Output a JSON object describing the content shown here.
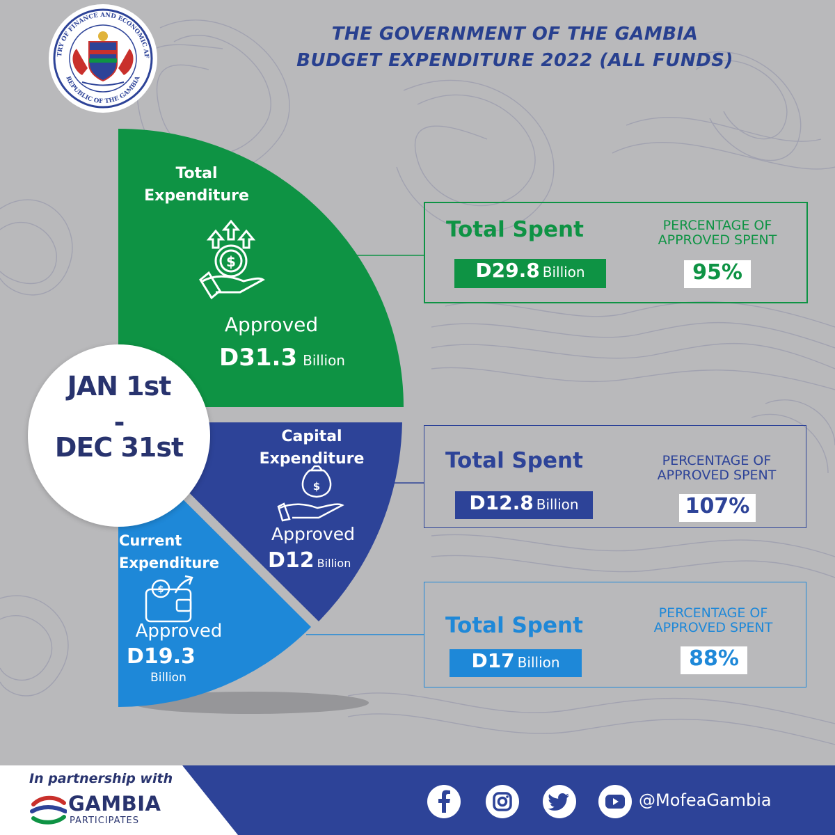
{
  "header": {
    "title_line1": "THE GOVERNMENT OF THE GAMBIA",
    "title_line2": "BUDGET EXPENDITURE 2022 (ALL FUNDS)"
  },
  "logo": {
    "ring_text": "MINISTRY OF FINANCE AND ECONOMIC AFFAIRS",
    "bottom_text": "REPUBLIC OF THE GAMBIA"
  },
  "period": {
    "line1": "JAN 1st",
    "line2": "-",
    "line3": "DEC 31st"
  },
  "sectors": {
    "total": {
      "label1": "Total",
      "label2": "Expenditure",
      "approved_label": "Approved",
      "approved_value": "D31.3",
      "approved_unit": "Billion",
      "color": "#0e9344"
    },
    "capital": {
      "label1": "Capital",
      "label2": "Expenditure",
      "approved_label": "Approved",
      "approved_value": "D12",
      "approved_unit": "Billion",
      "color": "#2d4398"
    },
    "current": {
      "label1": "Current",
      "label2": "Expenditure",
      "approved_label": "Approved",
      "approved_value": "D19.3",
      "approved_unit": "Billion",
      "color": "#1e88d8"
    }
  },
  "cards": [
    {
      "total_spent_label": "Total Spent",
      "amount": "D29.8",
      "unit": "Billion",
      "pct_label_line1": "PERCENTAGE OF",
      "pct_label_line2": "APPROVED SPENT",
      "pct": "95%",
      "color": "#0e9344"
    },
    {
      "total_spent_label": "Total Spent",
      "amount": "D12.8",
      "unit": "Billion",
      "pct_label_line1": "PERCENTAGE OF",
      "pct_label_line2": "APPROVED SPENT",
      "pct": "107%",
      "color": "#2d4398"
    },
    {
      "total_spent_label": "Total Spent",
      "amount": "D17",
      "unit": "Billion",
      "pct_label_line1": "PERCENTAGE OF",
      "pct_label_line2": "APPROVED SPENT",
      "pct": "88%",
      "color": "#1e88d8"
    }
  ],
  "footer": {
    "partnership": "In partnership with",
    "partner_name": "GAMBIA",
    "partner_sub": "PARTICIPATES",
    "handle": "@MofeaGambia",
    "social_icons": [
      "facebook-icon",
      "instagram-icon",
      "twitter-icon",
      "youtube-icon"
    ]
  }
}
